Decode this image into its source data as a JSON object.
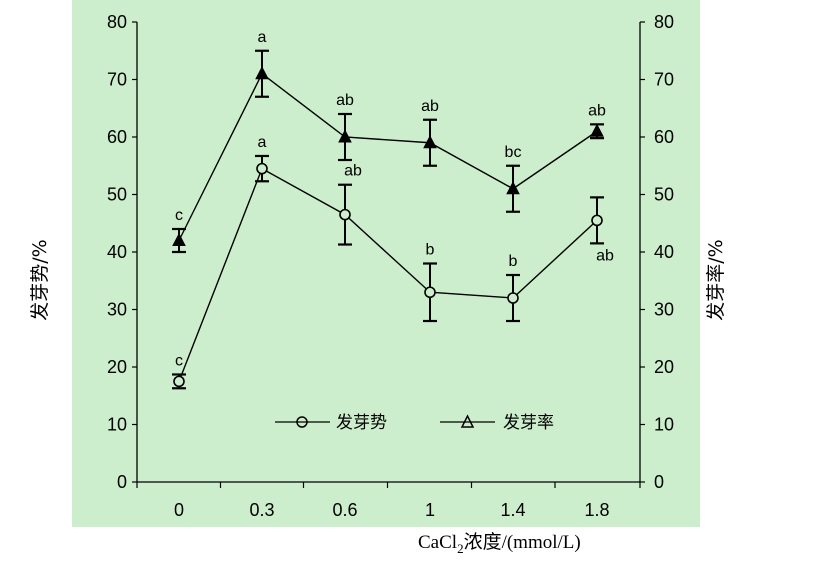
{
  "chart_data": {
    "type": "line",
    "xlabel_main": "CaCl",
    "xlabel_sub": "2",
    "xlabel_rest": "浓度/(mmol/L)",
    "ylabel_left": "发芽势/%",
    "ylabel_right": "发芽率/%",
    "ylim": [
      0,
      80
    ],
    "y_ticks": [
      "0",
      "10",
      "20",
      "30",
      "40",
      "50",
      "60",
      "70",
      "80"
    ],
    "categories": [
      "0",
      "0.3",
      "0.6",
      "1",
      "1.4",
      "1.8"
    ],
    "grid": false,
    "legend_position": "bottom-center",
    "background_color": "#cdeecd",
    "line_color": "#000000",
    "series": [
      {
        "name": "发芽势",
        "marker": "circle",
        "values": [
          17.5,
          54.5,
          46.5,
          33,
          32,
          45.5
        ],
        "error": [
          1.2,
          2.2,
          5.2,
          5.0,
          4.0,
          4.0
        ],
        "significance": [
          "c",
          "a",
          "ab",
          "b",
          "b",
          "ab"
        ]
      },
      {
        "name": "发芽率",
        "marker": "triangle",
        "values": [
          42,
          71,
          60,
          59,
          51,
          61
        ],
        "error": [
          2.0,
          4.0,
          4.0,
          4.0,
          4.0,
          1.2
        ],
        "significance": [
          "c",
          "a",
          "ab",
          "ab",
          "bc",
          "ab"
        ]
      }
    ]
  }
}
